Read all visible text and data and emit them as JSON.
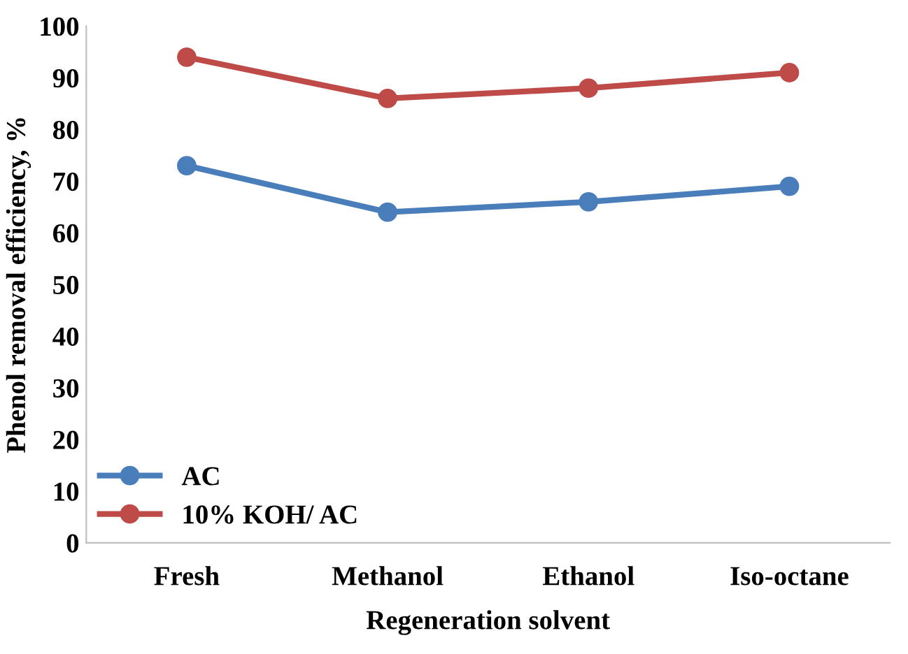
{
  "chart_data": {
    "type": "line",
    "xlabel": "Regeneration solvent",
    "ylabel": "Phenol removal efficiency, %",
    "categories": [
      "Fresh",
      "Methanol",
      "Ethanol",
      "Iso-octane"
    ],
    "series": [
      {
        "name": "AC",
        "color": "#4a7ebb",
        "values": [
          73,
          64,
          66,
          69
        ]
      },
      {
        "name": "10% KOH/ AC",
        "color": "#be4b48",
        "values": [
          94,
          86,
          88,
          91
        ]
      }
    ],
    "ylim": [
      0,
      100
    ],
    "yticks": [
      0,
      10,
      20,
      30,
      40,
      50,
      60,
      70,
      80,
      90,
      100
    ],
    "grid": false,
    "legend": "bottom left",
    "marker": "circle",
    "line_style": "solid"
  }
}
